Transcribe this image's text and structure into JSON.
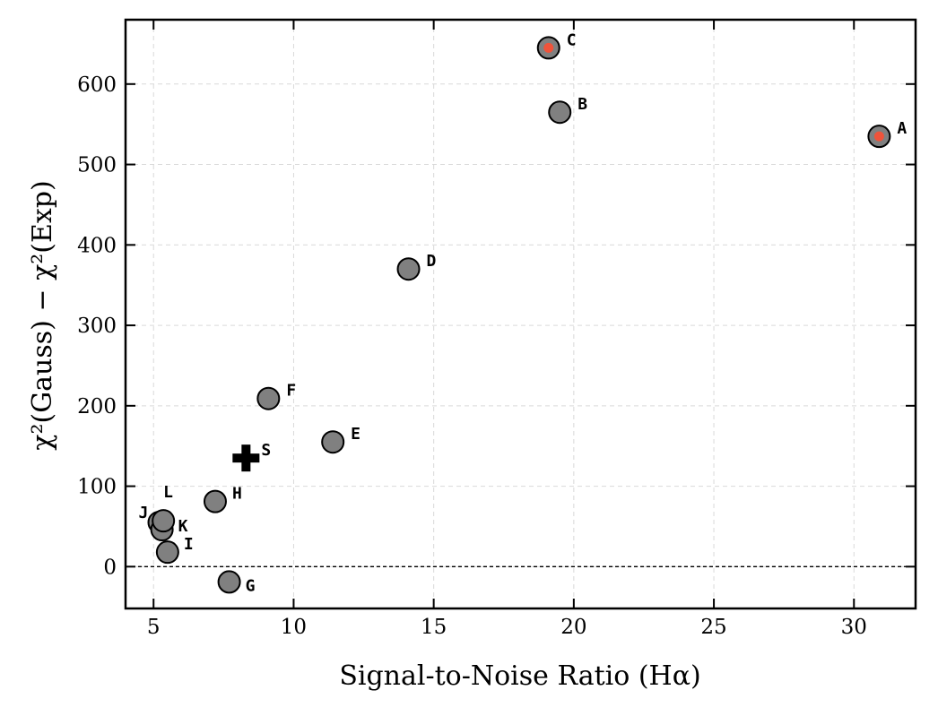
{
  "chart_data": {
    "type": "scatter",
    "title": "",
    "xlabel": "Signal-to-Noise Ratio (Hα)",
    "ylabel": "χ²(Gauss) − χ²(Exp)",
    "xlim": [
      4,
      32.2
    ],
    "ylim": [
      -52,
      680
    ],
    "xticks": [
      5,
      10,
      15,
      20,
      25,
      30
    ],
    "yticks": [
      0,
      100,
      200,
      300,
      400,
      500,
      600
    ],
    "grid": true,
    "reference_line": {
      "y": 0,
      "style": "dashed",
      "color": "#000000"
    },
    "colors": {
      "point_fill": "#808080",
      "point_edge": "#000000",
      "highlight": "#f0533a",
      "grid": "#d9d9d9"
    },
    "points": [
      {
        "label": "A",
        "x": 30.9,
        "y": 535,
        "highlight": true
      },
      {
        "label": "B",
        "x": 19.5,
        "y": 565,
        "highlight": false
      },
      {
        "label": "C",
        "x": 19.1,
        "y": 645,
        "highlight": true
      },
      {
        "label": "D",
        "x": 14.1,
        "y": 370,
        "highlight": false
      },
      {
        "label": "E",
        "x": 11.4,
        "y": 155,
        "highlight": false
      },
      {
        "label": "F",
        "x": 9.1,
        "y": 209,
        "highlight": false
      },
      {
        "label": "G",
        "x": 7.7,
        "y": -19,
        "highlight": false
      },
      {
        "label": "H",
        "x": 7.2,
        "y": 81,
        "highlight": false
      },
      {
        "label": "I",
        "x": 5.5,
        "y": 18,
        "highlight": false
      },
      {
        "label": "J",
        "x": 5.2,
        "y": 55,
        "highlight": false
      },
      {
        "label": "K",
        "x": 5.3,
        "y": 46,
        "highlight": false
      },
      {
        "label": "L",
        "x": 5.35,
        "y": 57,
        "highlight": false
      }
    ],
    "special_point": {
      "label": "S",
      "x": 8.3,
      "y": 135,
      "marker": "plus"
    }
  }
}
